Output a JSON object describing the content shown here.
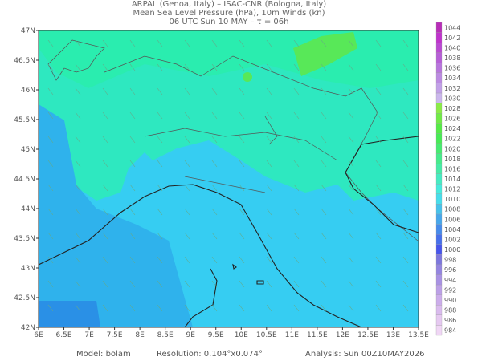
{
  "header": {
    "line1": "ARPAL (Genoa, Italy)  –  ISAC-CNR (Bologna, Italy)",
    "line2": "Mean Sea Level Pressure (hPa), 10m Winds (kn)",
    "line3": "06 UTC Sun 10 MAY  –  τ = 06h"
  },
  "map": {
    "lat_labels": [
      "42N",
      "42.5N",
      "43N",
      "43.5N",
      "44N",
      "44.5N",
      "45N",
      "45.5N",
      "46N",
      "46.5N",
      "47N"
    ],
    "lon_labels": [
      "6E",
      "6.5E",
      "7E",
      "7.5E",
      "8E",
      "8.5E",
      "9E",
      "9.5E",
      "10E",
      "10.5E",
      "11E",
      "11.5E",
      "12E",
      "12.5E",
      "13E",
      "13.5E"
    ]
  },
  "colorbar": {
    "labels": [
      1044,
      1042,
      1040,
      1038,
      1036,
      1034,
      1032,
      1030,
      1028,
      1026,
      1024,
      1022,
      1020,
      1018,
      1016,
      1014,
      1012,
      1010,
      1008,
      1006,
      1004,
      1002,
      1000,
      998,
      996,
      994,
      992,
      990,
      988,
      986,
      984
    ]
  },
  "footer": {
    "model": "Model: bolam",
    "resolution": "Resolution: 0.104°x0.074°",
    "analysis": "Analysis: Sun 00Z10MAY2026"
  }
}
